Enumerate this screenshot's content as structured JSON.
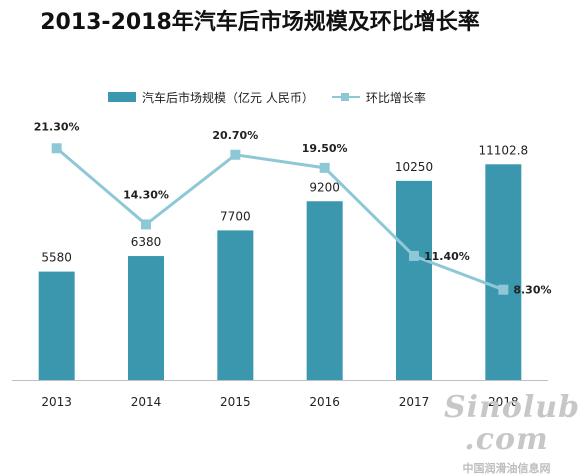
{
  "chart_data": {
    "type": "bar",
    "title": "2013-2018年汽车后市场规模及环比增长率",
    "categories": [
      "2013",
      "2014",
      "2015",
      "2016",
      "2017",
      "2018"
    ],
    "series": [
      {
        "name": "汽车后市场规模（亿元 人民币）",
        "type": "bar",
        "values": [
          5580,
          6380,
          7700,
          9200,
          10250,
          11102.8
        ],
        "labels": [
          "5580",
          "6380",
          "7700",
          "9200",
          "10250",
          "11102.8"
        ],
        "color": "#3b97ad"
      },
      {
        "name": "环比增长率",
        "type": "line",
        "values": [
          21.3,
          14.3,
          20.7,
          19.5,
          11.4,
          8.3
        ],
        "labels": [
          "21.30%",
          "14.30%",
          "20.70%",
          "19.50%",
          "11.40%",
          "8.30%"
        ],
        "color": "#8ec8d6"
      }
    ],
    "bar_ylim": [
      0,
      14000
    ],
    "line_ylim": [
      0,
      25
    ],
    "grid": false,
    "legend_position": "top"
  },
  "watermark": {
    "logo_text": "Sinolub .com",
    "sub_text": "中国润滑油信息网"
  }
}
